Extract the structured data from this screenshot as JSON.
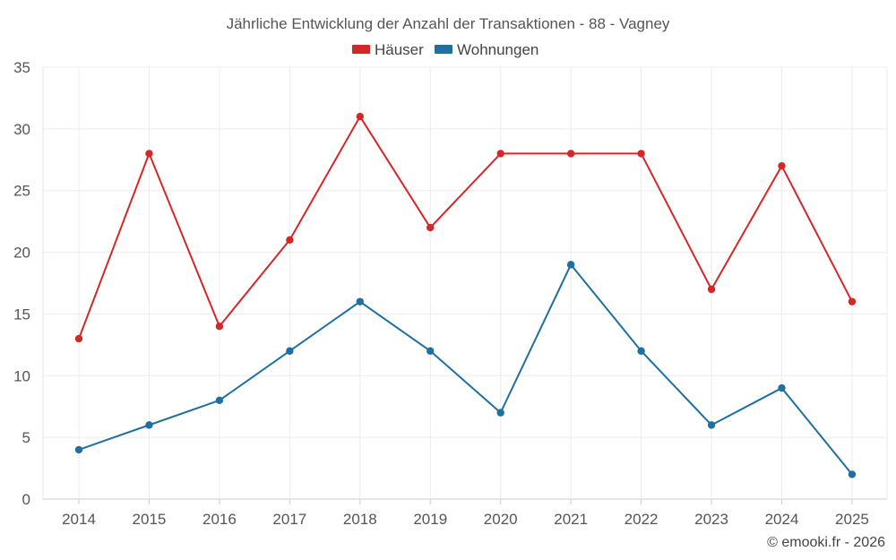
{
  "chart_data": {
    "type": "line",
    "title": "Jährliche Entwicklung der Anzahl der Transaktionen - 88 - Vagney",
    "xlabel": "",
    "ylabel": "",
    "categories": [
      "2014",
      "2015",
      "2016",
      "2017",
      "2018",
      "2019",
      "2020",
      "2021",
      "2022",
      "2023",
      "2024",
      "2025"
    ],
    "series": [
      {
        "name": "Häuser",
        "color": "#d62728",
        "values": [
          13,
          28,
          14,
          21,
          31,
          22,
          28,
          28,
          28,
          17,
          27,
          16
        ]
      },
      {
        "name": "Wohnungen",
        "color": "#1f6fa0",
        "values": [
          4,
          6,
          8,
          12,
          16,
          12,
          7,
          19,
          12,
          6,
          9,
          2
        ]
      }
    ],
    "ylim": [
      0,
      35
    ],
    "yticks": [
      "0",
      "5",
      "10",
      "15",
      "20",
      "25",
      "30",
      "35"
    ],
    "grid": true,
    "legend_position": "top-center"
  },
  "credit": "© emooki.fr - 2026"
}
